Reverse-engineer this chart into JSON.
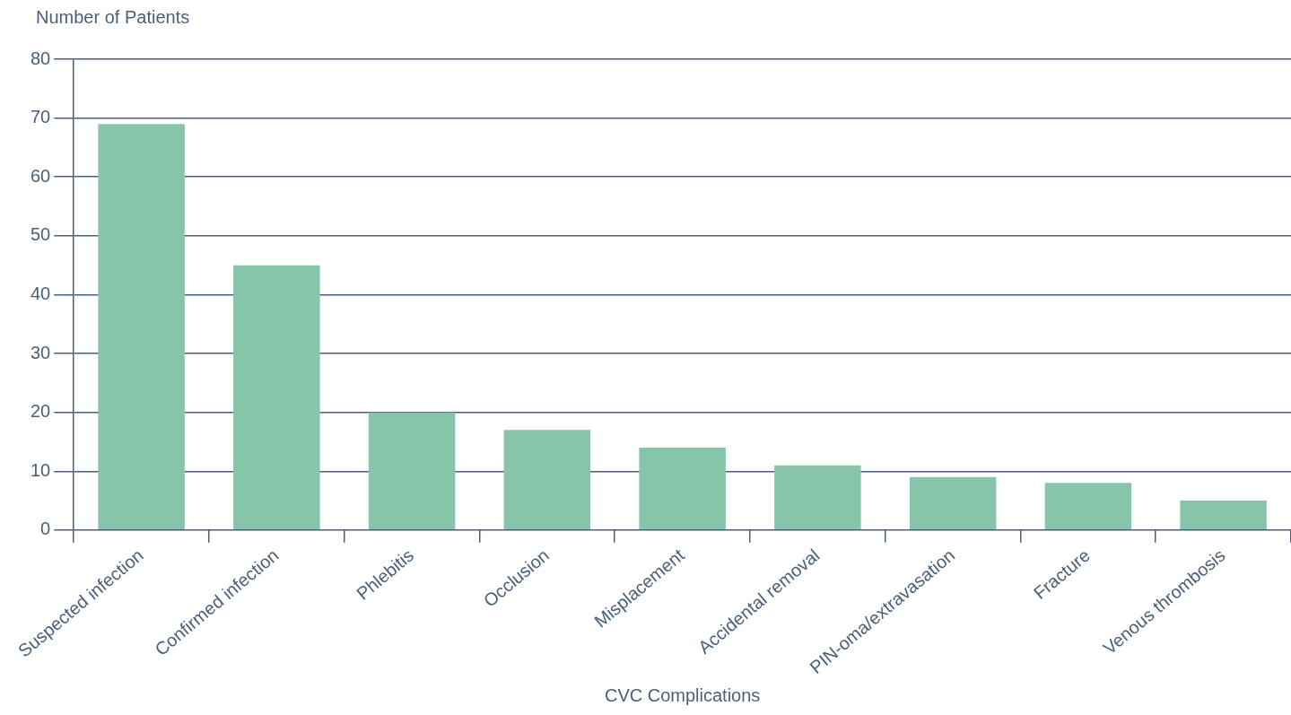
{
  "chart_data": {
    "type": "bar",
    "xlabel": "CVC Complications",
    "ylabel": "Number of Patients",
    "categories": [
      "Suspected infection",
      "Confirmed infection",
      "Phlebitis",
      "Occlusion",
      "Misplacement",
      "Accidental removal",
      "PIN-oma/extravasation",
      "Fracture",
      "Venous thrombosis"
    ],
    "values": [
      69,
      45,
      20,
      17,
      14,
      11,
      9,
      8,
      5
    ],
    "color": "#86c5a9",
    "ylim": [
      0,
      80
    ],
    "yticks": [
      0,
      10,
      20,
      30,
      40,
      50,
      60,
      70,
      80
    ],
    "grid": "y",
    "legend": false
  }
}
